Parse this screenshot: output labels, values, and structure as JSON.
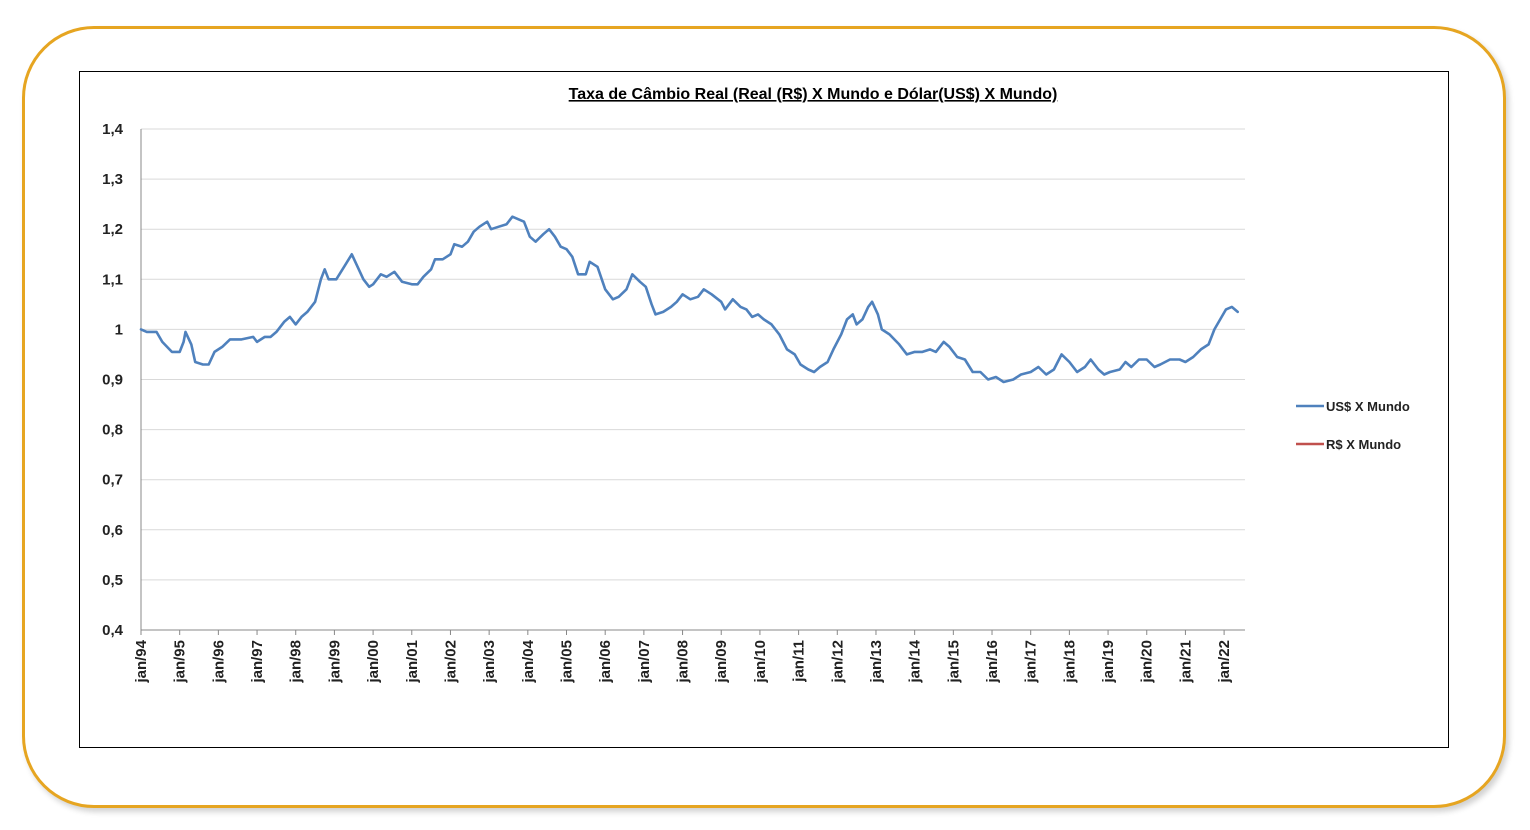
{
  "chart_data": {
    "type": "line",
    "title": "Taxa de Câmbio Real (Real (R$) X Mundo e Dólar(US$)  X Mundo)",
    "xlabel": "",
    "ylabel": "",
    "ylim": [
      0.4,
      1.4
    ],
    "yticks": [
      "1,4",
      "1,3",
      "1,2",
      "1,1",
      "1",
      "0,9",
      "0,8",
      "0,7",
      "0,6",
      "0,5",
      "0,4"
    ],
    "xlim": [
      1994.0,
      2022.54
    ],
    "xticks": [
      "jan/94",
      "jan/95",
      "jan/96",
      "jan/97",
      "jan/98",
      "jan/99",
      "jan/00",
      "jan/01",
      "jan/02",
      "jan/03",
      "jan/04",
      "jan/05",
      "jan/06",
      "jan/07",
      "jan/08",
      "jan/09",
      "jan/10",
      "jan/11",
      "jan/12",
      "jan/13",
      "jan/14",
      "jan/15",
      "jan/16",
      "jan/17",
      "jan/18",
      "jan/19",
      "jan/20",
      "jan/21",
      "jan/22"
    ],
    "grid": true,
    "legend_position": "right",
    "series": [
      {
        "name": "US$ X Mundo",
        "color": "#4F81BD",
        "points": [
          [
            1994.0,
            1.0
          ],
          [
            1994.15,
            0.995
          ],
          [
            1994.4,
            0.995
          ],
          [
            1994.55,
            0.975
          ],
          [
            1994.8,
            0.955
          ],
          [
            1995.0,
            0.955
          ],
          [
            1995.1,
            0.975
          ],
          [
            1995.15,
            0.995
          ],
          [
            1995.3,
            0.97
          ],
          [
            1995.4,
            0.935
          ],
          [
            1995.6,
            0.93
          ],
          [
            1995.75,
            0.93
          ],
          [
            1995.9,
            0.955
          ],
          [
            1996.1,
            0.965
          ],
          [
            1996.3,
            0.98
          ],
          [
            1996.6,
            0.98
          ],
          [
            1996.9,
            0.985
          ],
          [
            1997.0,
            0.975
          ],
          [
            1997.2,
            0.985
          ],
          [
            1997.35,
            0.985
          ],
          [
            1997.5,
            0.995
          ],
          [
            1997.7,
            1.015
          ],
          [
            1997.85,
            1.025
          ],
          [
            1998.0,
            1.01
          ],
          [
            1998.15,
            1.025
          ],
          [
            1998.3,
            1.035
          ],
          [
            1998.5,
            1.055
          ],
          [
            1998.65,
            1.1
          ],
          [
            1998.75,
            1.12
          ],
          [
            1998.85,
            1.1
          ],
          [
            1999.05,
            1.1
          ],
          [
            1999.25,
            1.125
          ],
          [
            1999.45,
            1.15
          ],
          [
            1999.6,
            1.125
          ],
          [
            1999.75,
            1.1
          ],
          [
            1999.9,
            1.085
          ],
          [
            2000.0,
            1.09
          ],
          [
            2000.2,
            1.11
          ],
          [
            2000.35,
            1.105
          ],
          [
            2000.55,
            1.115
          ],
          [
            2000.75,
            1.095
          ],
          [
            2001.0,
            1.09
          ],
          [
            2001.15,
            1.09
          ],
          [
            2001.3,
            1.105
          ],
          [
            2001.5,
            1.12
          ],
          [
            2001.6,
            1.14
          ],
          [
            2001.8,
            1.14
          ],
          [
            2002.0,
            1.15
          ],
          [
            2002.1,
            1.17
          ],
          [
            2002.3,
            1.165
          ],
          [
            2002.45,
            1.175
          ],
          [
            2002.6,
            1.195
          ],
          [
            2002.75,
            1.205
          ],
          [
            2002.95,
            1.215
          ],
          [
            2003.05,
            1.2
          ],
          [
            2003.25,
            1.205
          ],
          [
            2003.45,
            1.21
          ],
          [
            2003.6,
            1.225
          ],
          [
            2003.75,
            1.22
          ],
          [
            2003.9,
            1.215
          ],
          [
            2004.05,
            1.185
          ],
          [
            2004.2,
            1.175
          ],
          [
            2004.4,
            1.19
          ],
          [
            2004.55,
            1.2
          ],
          [
            2004.7,
            1.185
          ],
          [
            2004.85,
            1.165
          ],
          [
            2005.0,
            1.16
          ],
          [
            2005.15,
            1.145
          ],
          [
            2005.3,
            1.11
          ],
          [
            2005.5,
            1.11
          ],
          [
            2005.6,
            1.135
          ],
          [
            2005.8,
            1.125
          ],
          [
            2006.0,
            1.08
          ],
          [
            2006.2,
            1.06
          ],
          [
            2006.35,
            1.065
          ],
          [
            2006.55,
            1.08
          ],
          [
            2006.7,
            1.11
          ],
          [
            2006.9,
            1.095
          ],
          [
            2007.05,
            1.085
          ],
          [
            2007.2,
            1.05
          ],
          [
            2007.3,
            1.03
          ],
          [
            2007.5,
            1.035
          ],
          [
            2007.7,
            1.045
          ],
          [
            2007.85,
            1.055
          ],
          [
            2008.0,
            1.07
          ],
          [
            2008.2,
            1.06
          ],
          [
            2008.4,
            1.065
          ],
          [
            2008.55,
            1.08
          ],
          [
            2008.75,
            1.07
          ],
          [
            2009.0,
            1.055
          ],
          [
            2009.1,
            1.04
          ],
          [
            2009.3,
            1.06
          ],
          [
            2009.5,
            1.045
          ],
          [
            2009.65,
            1.04
          ],
          [
            2009.8,
            1.025
          ],
          [
            2009.95,
            1.03
          ],
          [
            2010.1,
            1.02
          ],
          [
            2010.3,
            1.01
          ],
          [
            2010.5,
            0.99
          ],
          [
            2010.7,
            0.96
          ],
          [
            2010.9,
            0.95
          ],
          [
            2011.05,
            0.93
          ],
          [
            2011.25,
            0.92
          ],
          [
            2011.4,
            0.915
          ],
          [
            2011.55,
            0.925
          ],
          [
            2011.75,
            0.935
          ],
          [
            2011.9,
            0.96
          ],
          [
            2012.1,
            0.99
          ],
          [
            2012.25,
            1.02
          ],
          [
            2012.4,
            1.03
          ],
          [
            2012.5,
            1.01
          ],
          [
            2012.65,
            1.02
          ],
          [
            2012.8,
            1.045
          ],
          [
            2012.9,
            1.055
          ],
          [
            2013.05,
            1.03
          ],
          [
            2013.15,
            1.0
          ],
          [
            2013.35,
            0.99
          ],
          [
            2013.6,
            0.97
          ],
          [
            2013.8,
            0.95
          ],
          [
            2014.0,
            0.955
          ],
          [
            2014.2,
            0.955
          ],
          [
            2014.4,
            0.96
          ],
          [
            2014.55,
            0.955
          ],
          [
            2014.75,
            0.975
          ],
          [
            2014.9,
            0.965
          ],
          [
            2015.1,
            0.945
          ],
          [
            2015.3,
            0.94
          ],
          [
            2015.5,
            0.915
          ],
          [
            2015.7,
            0.915
          ],
          [
            2015.9,
            0.9
          ],
          [
            2016.1,
            0.905
          ],
          [
            2016.3,
            0.895
          ],
          [
            2016.55,
            0.9
          ],
          [
            2016.75,
            0.91
          ],
          [
            2017.0,
            0.915
          ],
          [
            2017.2,
            0.925
          ],
          [
            2017.4,
            0.91
          ],
          [
            2017.6,
            0.92
          ],
          [
            2017.8,
            0.95
          ],
          [
            2018.0,
            0.935
          ],
          [
            2018.2,
            0.915
          ],
          [
            2018.4,
            0.925
          ],
          [
            2018.55,
            0.94
          ],
          [
            2018.75,
            0.92
          ],
          [
            2018.9,
            0.91
          ],
          [
            2019.05,
            0.915
          ],
          [
            2019.3,
            0.92
          ],
          [
            2019.45,
            0.935
          ],
          [
            2019.6,
            0.925
          ],
          [
            2019.8,
            0.94
          ],
          [
            2020.0,
            0.94
          ],
          [
            2020.2,
            0.925
          ],
          [
            2020.35,
            0.93
          ],
          [
            2020.6,
            0.94
          ],
          [
            2020.85,
            0.94
          ],
          [
            2021.0,
            0.935
          ],
          [
            2021.2,
            0.945
          ],
          [
            2021.4,
            0.96
          ],
          [
            2021.6,
            0.97
          ],
          [
            2021.75,
            1.0
          ],
          [
            2021.9,
            1.02
          ],
          [
            2022.05,
            1.04
          ],
          [
            2022.2,
            1.045
          ],
          [
            2022.35,
            1.035
          ]
        ]
      },
      {
        "name": "R$ X Mundo",
        "color": "#C0504D",
        "points": []
      }
    ]
  }
}
